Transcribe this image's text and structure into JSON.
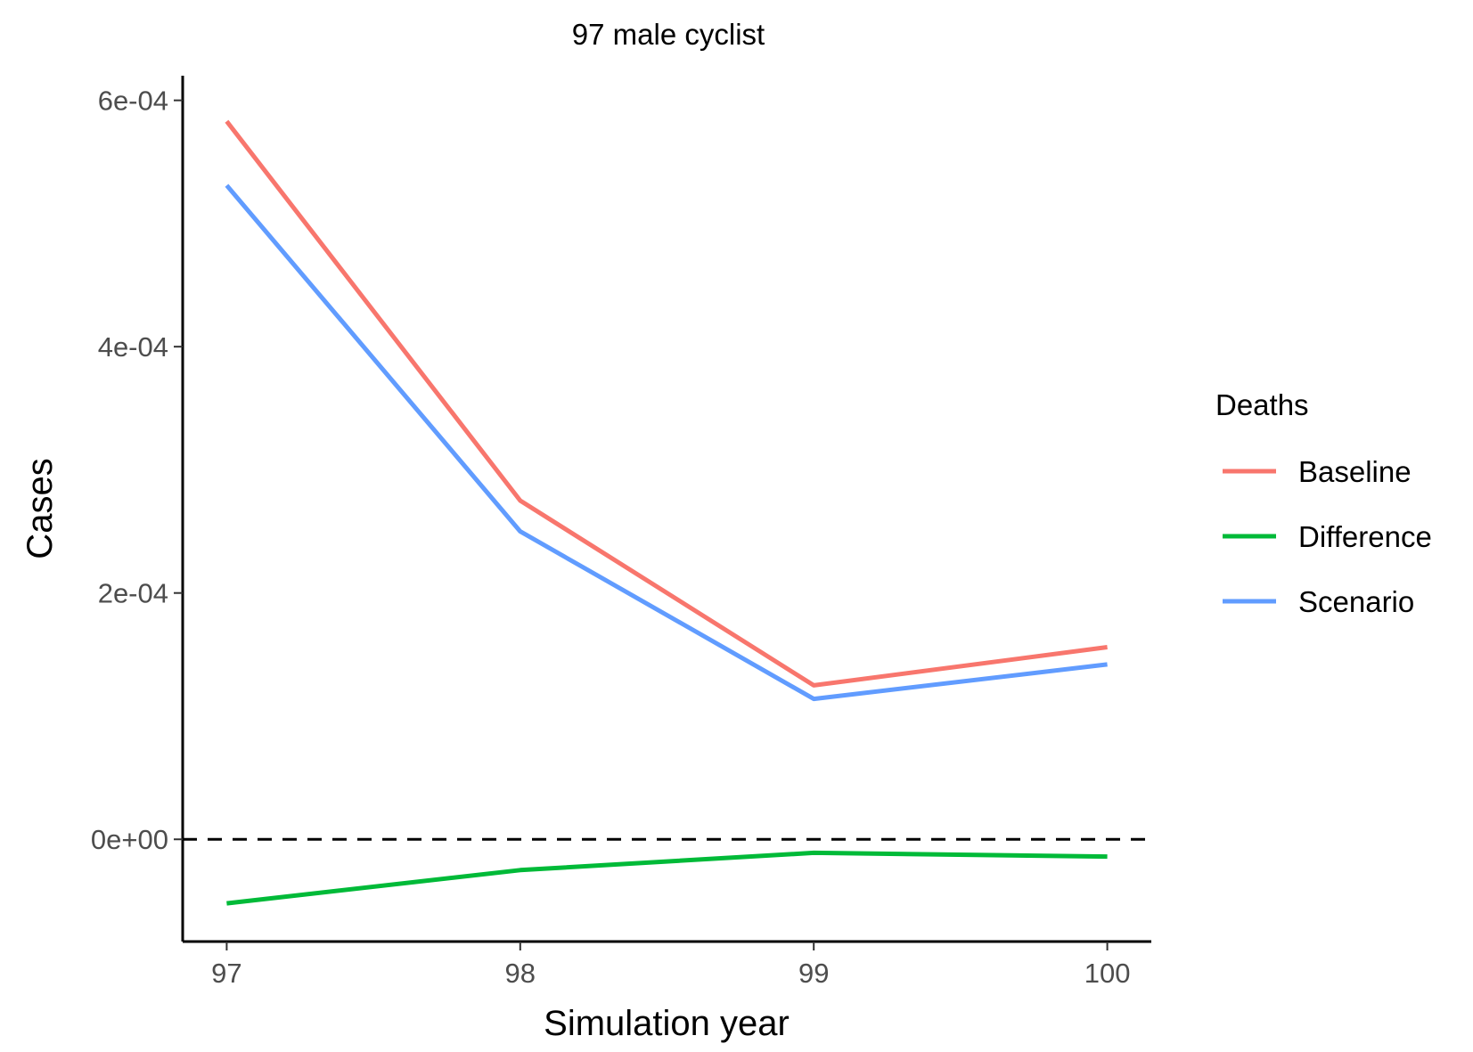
{
  "chart_data": {
    "type": "line",
    "title": "97 male cyclist",
    "xlabel": "Simulation year",
    "ylabel": "Cases",
    "x": [
      97,
      98,
      99,
      100
    ],
    "x_tick_labels": [
      "97",
      "98",
      "99",
      "100"
    ],
    "xlim": [
      96.85,
      100.15
    ],
    "ylim": [
      -8.3e-05,
      0.00062
    ],
    "y_ticks": [
      0,
      0.0002,
      0.0004,
      0.0006
    ],
    "y_tick_labels": [
      "0e+00",
      "2e-04",
      "4e-04",
      "6e-04"
    ],
    "reference_line": {
      "y": 0,
      "style": "dashed",
      "color": "#000000"
    },
    "grid": false,
    "legend": {
      "title": "Deaths",
      "position": "right",
      "items": [
        "Baseline",
        "Difference",
        "Scenario"
      ]
    },
    "series": [
      {
        "name": "Baseline",
        "color": "#F8766D",
        "values": [
          0.000583,
          0.000275,
          0.000125,
          0.000156
        ]
      },
      {
        "name": "Difference",
        "color": "#00BA38",
        "values": [
          -5.2e-05,
          -2.5e-05,
          -1.1e-05,
          -1.4e-05
        ]
      },
      {
        "name": "Scenario",
        "color": "#619CFF",
        "values": [
          0.000531,
          0.00025,
          0.000114,
          0.000142
        ]
      }
    ]
  }
}
